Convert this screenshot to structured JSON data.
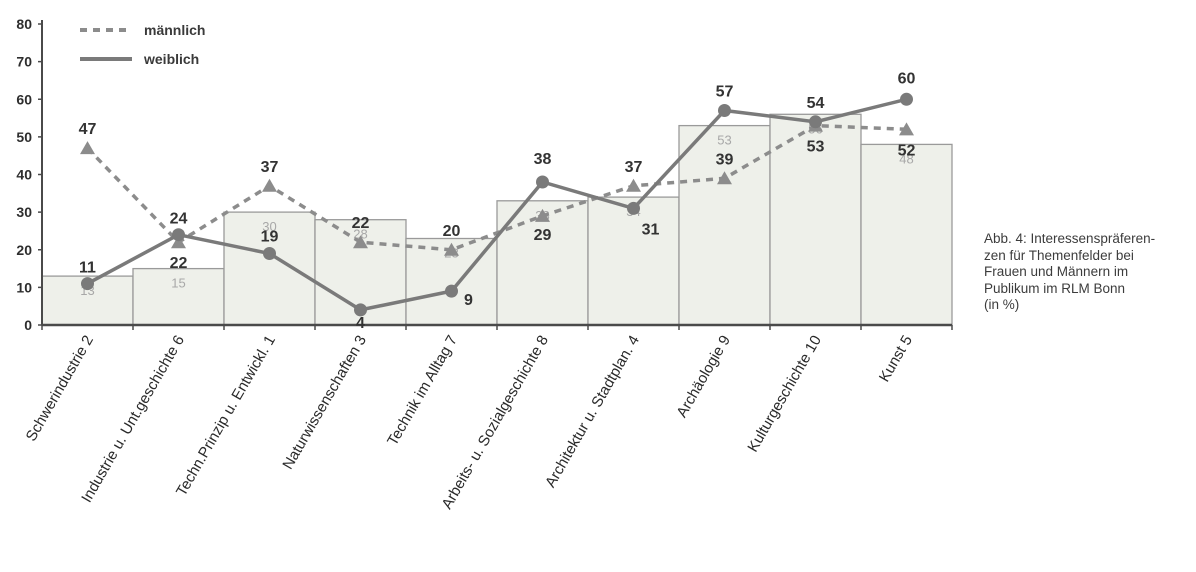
{
  "chart_data": {
    "type": "bar+line",
    "categories": [
      "Schwerindustrie 2",
      "Industrie u. Unt.geschichte 6",
      "Techn.Prinzip u. Entwickl. 1",
      "Naturwissenschaften 3",
      "Technik im Alltag 7",
      "Arbeits- u. Sozialgeschichte 8",
      "Architektur u. Stadtplan. 4",
      "Archäologie 9",
      "Kulturgeschichte 10",
      "Kunst 5"
    ],
    "bars": [
      13,
      15,
      30,
      28,
      23,
      33,
      34,
      53,
      56,
      48
    ],
    "series": [
      {
        "name": "männlich",
        "style": "dashed",
        "marker": "triangle",
        "values": [
          47,
          22,
          37,
          22,
          20,
          29,
          37,
          39,
          53,
          52
        ],
        "color": "#8c8c8c"
      },
      {
        "name": "weiblich",
        "style": "solid",
        "marker": "circle",
        "values": [
          11,
          24,
          19,
          4,
          9,
          38,
          31,
          57,
          54,
          60
        ],
        "color": "#7a7a7a"
      }
    ],
    "y_ticks": [
      "0",
      "10",
      "20",
      "30",
      "40",
      "50",
      "60",
      "70",
      "80"
    ],
    "ylim": [
      0,
      80
    ],
    "bar_fill": "#eef0ea",
    "bar_stroke": "#9a9a9a",
    "legend_position": "top-left",
    "caption_lines": [
      "Abb. 4: Interessenspräferen-",
      "zen für Themenfelder bei",
      "Frauen und Männern im",
      "Publikum im RLM Bonn",
      "(in %)"
    ]
  }
}
